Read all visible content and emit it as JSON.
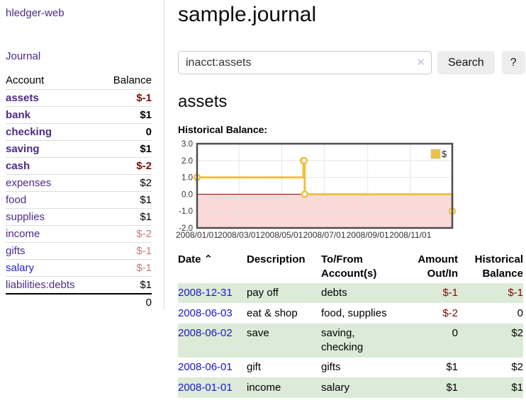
{
  "app": {
    "brand": "hledger-web"
  },
  "sidebar": {
    "journal_link": "Journal",
    "accounts_table": {
      "headers": {
        "account": "Account",
        "balance": "Balance"
      },
      "rows": [
        {
          "account": "assets",
          "balance": "$-1",
          "depth": 1,
          "bold": true,
          "balance_tone": "neg-strong",
          "link_tone": "purple"
        },
        {
          "account": "bank",
          "balance": "$1",
          "depth": 2,
          "bold": true,
          "balance_tone": "normal",
          "link_tone": "purple"
        },
        {
          "account": "checking",
          "balance": "0",
          "depth": 3,
          "bold": true,
          "balance_tone": "normal",
          "link_tone": "purple"
        },
        {
          "account": "saving",
          "balance": "$1",
          "depth": 3,
          "bold": true,
          "balance_tone": "normal",
          "link_tone": "purple"
        },
        {
          "account": "cash",
          "balance": "$-2",
          "depth": 2,
          "bold": true,
          "balance_tone": "neg-strong",
          "link_tone": "purple"
        },
        {
          "account": "expenses",
          "balance": "$2",
          "depth": 1,
          "bold": false,
          "balance_tone": "normal",
          "link_tone": "purple"
        },
        {
          "account": "food",
          "balance": "$1",
          "depth": 2,
          "bold": false,
          "balance_tone": "normal",
          "link_tone": "purple"
        },
        {
          "account": "supplies",
          "balance": "$1",
          "depth": 2,
          "bold": false,
          "balance_tone": "normal",
          "link_tone": "purple"
        },
        {
          "account": "income",
          "balance": "$-2",
          "depth": 1,
          "bold": false,
          "balance_tone": "neg-muted",
          "link_tone": "purple"
        },
        {
          "account": "gifts",
          "balance": "$-1",
          "depth": 2,
          "bold": false,
          "balance_tone": "neg-muted",
          "link_tone": "purple"
        },
        {
          "account": "salary",
          "balance": "$-1",
          "depth": 2,
          "bold": false,
          "balance_tone": "neg-muted",
          "link_tone": "blue"
        },
        {
          "account": "liabilities:debts",
          "balance": "$1",
          "depth": 1,
          "bold": false,
          "balance_tone": "normal",
          "link_tone": "purple"
        }
      ],
      "total": "0"
    }
  },
  "header": {
    "title": "sample.journal",
    "search": {
      "value": "inacct:assets",
      "clear_icon": "✕",
      "search_button": "Search",
      "help_button": "?"
    }
  },
  "register": {
    "heading": "assets",
    "chart_label": "Historical Balance:"
  },
  "chart_data": {
    "type": "line",
    "title": "Historical Balance",
    "step": true,
    "legend": [
      {
        "label": "$",
        "color": "#edc240"
      }
    ],
    "legend_position": "top-right",
    "grid": true,
    "ylim": [
      -2,
      3
    ],
    "y_ticks": [
      "3.0",
      "2.0",
      "1.0",
      "0.0",
      "-1.0",
      "-2.0"
    ],
    "y_tick_values": [
      3,
      2,
      1,
      0,
      -1,
      -2
    ],
    "x_range_days": [
      0,
      365
    ],
    "x_ticks": [
      {
        "label": "2008/01/01",
        "day": 0
      },
      {
        "label": "2008/03/01",
        "day": 60
      },
      {
        "label": "2008/05/01",
        "day": 121
      },
      {
        "label": "2008/07/01",
        "day": 182
      },
      {
        "label": "2008/09/01",
        "day": 244
      },
      {
        "label": "2008/11/01",
        "day": 305
      }
    ],
    "points": [
      {
        "date": "2008-01-01",
        "day": 0,
        "value": 1
      },
      {
        "date": "2008-06-01",
        "day": 152,
        "value": 2
      },
      {
        "date": "2008-06-02",
        "day": 153,
        "value": 2
      },
      {
        "date": "2008-06-03",
        "day": 154,
        "value": 0
      },
      {
        "date": "2008-12-31",
        "day": 365,
        "value": -1
      }
    ],
    "series_color": "#edc240",
    "zero_line_color": "#8b0000",
    "negative_fill": "#fbd9d9",
    "grid_color": "#e6e6e6",
    "border_color": "#4d4d4d"
  },
  "transactions": {
    "headers": {
      "date": "Date",
      "sort_icon": "⌃",
      "description": "Description",
      "accounts": "To/From Account(s)",
      "amount": "Amount Out/In",
      "balance": "Historical Balance"
    },
    "rows": [
      {
        "date": "2008-12-31",
        "description": "pay off",
        "accounts": "debts",
        "amount": "$-1",
        "balance": "$-1",
        "amount_negative": true,
        "balance_negative": true,
        "shaded": true
      },
      {
        "date": "2008-06-03",
        "description": "eat & shop",
        "accounts": "food, supplies",
        "amount": "$-2",
        "balance": "0",
        "amount_negative": true,
        "balance_negative": false,
        "shaded": false
      },
      {
        "date": "2008-06-02",
        "description": "save",
        "accounts": "saving, checking",
        "amount": "0",
        "balance": "$2",
        "amount_negative": false,
        "balance_negative": false,
        "shaded": true
      },
      {
        "date": "2008-06-01",
        "description": "gift",
        "accounts": "gifts",
        "amount": "$1",
        "balance": "$2",
        "amount_negative": false,
        "balance_negative": false,
        "shaded": false
      },
      {
        "date": "2008-01-01",
        "description": "income",
        "accounts": "salary",
        "amount": "$1",
        "balance": "$1",
        "amount_negative": false,
        "balance_negative": false,
        "shaded": true
      }
    ]
  }
}
